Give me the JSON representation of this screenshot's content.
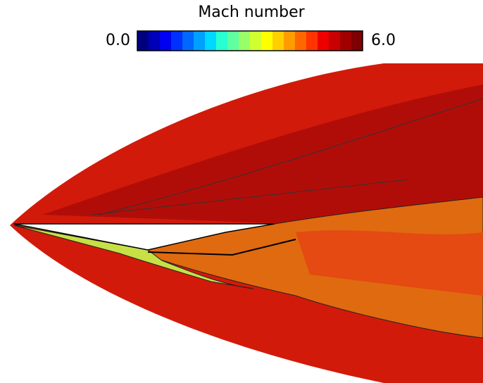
{
  "colorbar": {
    "title": "Mach number",
    "min": {
      "value": 0,
      "label": "0.0"
    },
    "max": {
      "value": 6,
      "label": "6.0"
    },
    "colors": [
      "#00007f",
      "#0000b8",
      "#0000f0",
      "#0030ff",
      "#0068ff",
      "#00a0ff",
      "#00d8ff",
      "#28ffd0",
      "#60ffa0",
      "#98ff68",
      "#d0ff30",
      "#ffff00",
      "#ffcf00",
      "#ff9c00",
      "#ff6800",
      "#ff3400",
      "#ef0000",
      "#c80000",
      "#a00000",
      "#7f0000"
    ]
  }
}
